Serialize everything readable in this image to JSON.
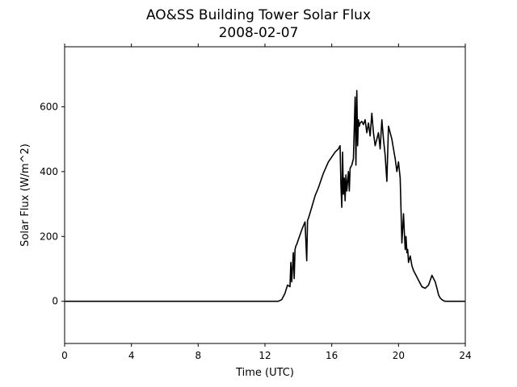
{
  "chart_data": {
    "type": "line",
    "title": "AO&SS Building Tower Solar Flux",
    "subtitle": "2008-02-07",
    "xlabel": "Time (UTC)",
    "ylabel": "Solar Flux (W/m^2)",
    "xlim": [
      0,
      24
    ],
    "ylim": [
      -130,
      785
    ],
    "xticks": [
      0,
      4,
      8,
      12,
      16,
      20,
      24
    ],
    "yticks": [
      0,
      200,
      400,
      600
    ],
    "grid": false,
    "legend": "none",
    "series": [
      {
        "color": "#000000",
        "x": [
          0,
          12.8,
          13.0,
          13.2,
          13.35,
          13.5,
          13.55,
          13.6,
          13.7,
          13.75,
          13.8,
          13.85,
          13.9,
          14.0,
          14.2,
          14.4,
          14.5,
          14.55,
          14.6,
          14.8,
          15.0,
          15.2,
          15.5,
          15.8,
          16.0,
          16.2,
          16.4,
          16.5,
          16.55,
          16.6,
          16.65,
          16.7,
          16.75,
          16.8,
          16.85,
          16.9,
          17.0,
          17.05,
          17.1,
          17.2,
          17.3,
          17.4,
          17.45,
          17.5,
          17.55,
          17.6,
          17.65,
          17.7,
          17.8,
          17.9,
          18.0,
          18.1,
          18.2,
          18.3,
          18.4,
          18.5,
          18.6,
          18.7,
          18.8,
          18.9,
          19.0,
          19.1,
          19.2,
          19.3,
          19.4,
          19.5,
          19.6,
          19.7,
          19.8,
          19.9,
          20.0,
          20.1,
          20.2,
          20.3,
          20.35,
          20.4,
          20.45,
          20.5,
          20.55,
          20.6,
          20.65,
          20.7,
          20.8,
          20.9,
          21.0,
          21.2,
          21.4,
          21.6,
          21.8,
          22.0,
          22.2,
          22.3,
          22.4,
          22.5,
          22.6,
          22.7,
          22.8,
          23.0,
          23.2,
          23.5,
          24.0
        ],
        "y": [
          0,
          0,
          5,
          25,
          50,
          45,
          120,
          60,
          150,
          70,
          160,
          170,
          175,
          190,
          220,
          245,
          125,
          250,
          255,
          290,
          325,
          350,
          395,
          430,
          445,
          460,
          470,
          480,
          360,
          290,
          460,
          330,
          380,
          310,
          390,
          340,
          400,
          340,
          410,
          420,
          440,
          630,
          420,
          650,
          480,
          560,
          540,
          550,
          555,
          545,
          560,
          520,
          550,
          510,
          580,
          520,
          480,
          500,
          520,
          470,
          560,
          500,
          450,
          370,
          540,
          520,
          500,
          470,
          440,
          400,
          430,
          380,
          180,
          270,
          210,
          160,
          200,
          150,
          160,
          120,
          130,
          140,
          110,
          95,
          85,
          65,
          45,
          40,
          50,
          80,
          60,
          40,
          20,
          10,
          5,
          2,
          0,
          0,
          0,
          0,
          0
        ]
      }
    ]
  }
}
